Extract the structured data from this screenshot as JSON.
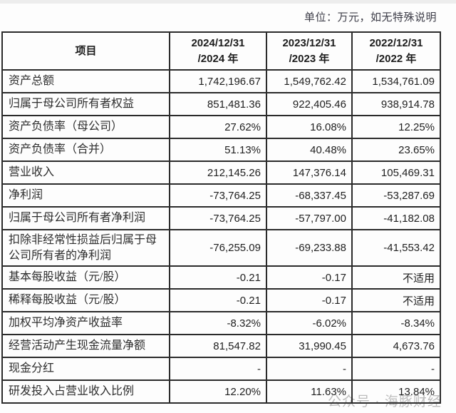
{
  "note": "单位：万元，如无特殊说明",
  "watermark": "公众号 · 海豚财经",
  "table": {
    "item_header": "项目",
    "col_headers": [
      [
        "2024/12/31",
        "/2024 年"
      ],
      [
        "2023/12/31",
        "/2023 年"
      ],
      [
        "2022/12/31",
        "/2022 年"
      ]
    ],
    "rows": [
      {
        "label": "资产总额",
        "values": [
          "1,742,196.67",
          "1,549,762.42",
          "1,534,761.09"
        ]
      },
      {
        "label": "归属于母公司所有者权益",
        "values": [
          "851,481.36",
          "922,405.46",
          "938,914.78"
        ]
      },
      {
        "label": "资产负债率（母公司）",
        "values": [
          "27.62%",
          "16.08%",
          "12.25%"
        ]
      },
      {
        "label": "资产负债率（合并）",
        "values": [
          "51.13%",
          "40.48%",
          "23.65%"
        ]
      },
      {
        "label": "营业收入",
        "values": [
          "212,145.26",
          "147,376.14",
          "105,469.31"
        ]
      },
      {
        "label": "净利润",
        "values": [
          "-73,764.25",
          "-68,337.45",
          "-53,287.69"
        ]
      },
      {
        "label": "归属于母公司所有者净利润",
        "values": [
          "-73,764.25",
          "-57,797.00",
          "-41,182.08"
        ]
      },
      {
        "label": "扣除非经常性损益后归属于母公司所有者的净利润",
        "values": [
          "-76,255.09",
          "-69,233.88",
          "-41,553.42"
        ]
      },
      {
        "label": "基本每股收益（元/股）",
        "values": [
          "-0.21",
          "-0.17",
          "不适用"
        ]
      },
      {
        "label": "稀释每股收益（元/股）",
        "values": [
          "-0.21",
          "-0.17",
          "不适用"
        ]
      },
      {
        "label": "加权平均净资产收益率",
        "values": [
          "-8.32%",
          "-6.02%",
          "-8.34%"
        ]
      },
      {
        "label": "经营活动产生现金流量净额",
        "values": [
          "81,547.82",
          "31,990.45",
          "4,673.76"
        ]
      },
      {
        "label": "现金分红",
        "values": [
          "-",
          "-",
          "-"
        ]
      },
      {
        "label": "研发投入占营业收入比例",
        "values": [
          "12.20%",
          "11.63%",
          "13.84%"
        ]
      }
    ]
  }
}
